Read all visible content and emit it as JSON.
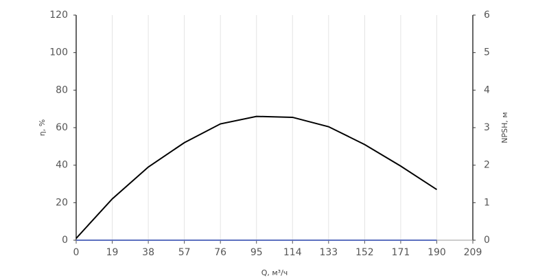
{
  "chart_data": {
    "type": "line",
    "x_label": "Q, м³/ч",
    "y_label": "η, %",
    "y2_label": "NPSH, м",
    "x": [
      0,
      19,
      38,
      57,
      76,
      95,
      114,
      133,
      152,
      171,
      190
    ],
    "series": [
      {
        "name": "η",
        "color": "#000000",
        "values": [
          1,
          22,
          39,
          52,
          62,
          66,
          65.5,
          60.5,
          51,
          39.5,
          27
        ]
      },
      {
        "name": "NPSH",
        "color": "#5b6fbf",
        "axis": "y2",
        "values": [
          0,
          0,
          0,
          0,
          0,
          0,
          0,
          0,
          0,
          0,
          0
        ]
      }
    ],
    "xlim": [
      0,
      209
    ],
    "xticks": [
      0,
      19,
      38,
      57,
      76,
      95,
      114,
      133,
      152,
      171,
      190,
      209
    ],
    "ylim": [
      0,
      120
    ],
    "yticks": [
      0,
      20,
      40,
      60,
      80,
      100,
      120
    ],
    "y2lim": [
      0,
      6
    ],
    "y2ticks": [
      0,
      1,
      2,
      3,
      4,
      5,
      6
    ],
    "grid": true
  }
}
